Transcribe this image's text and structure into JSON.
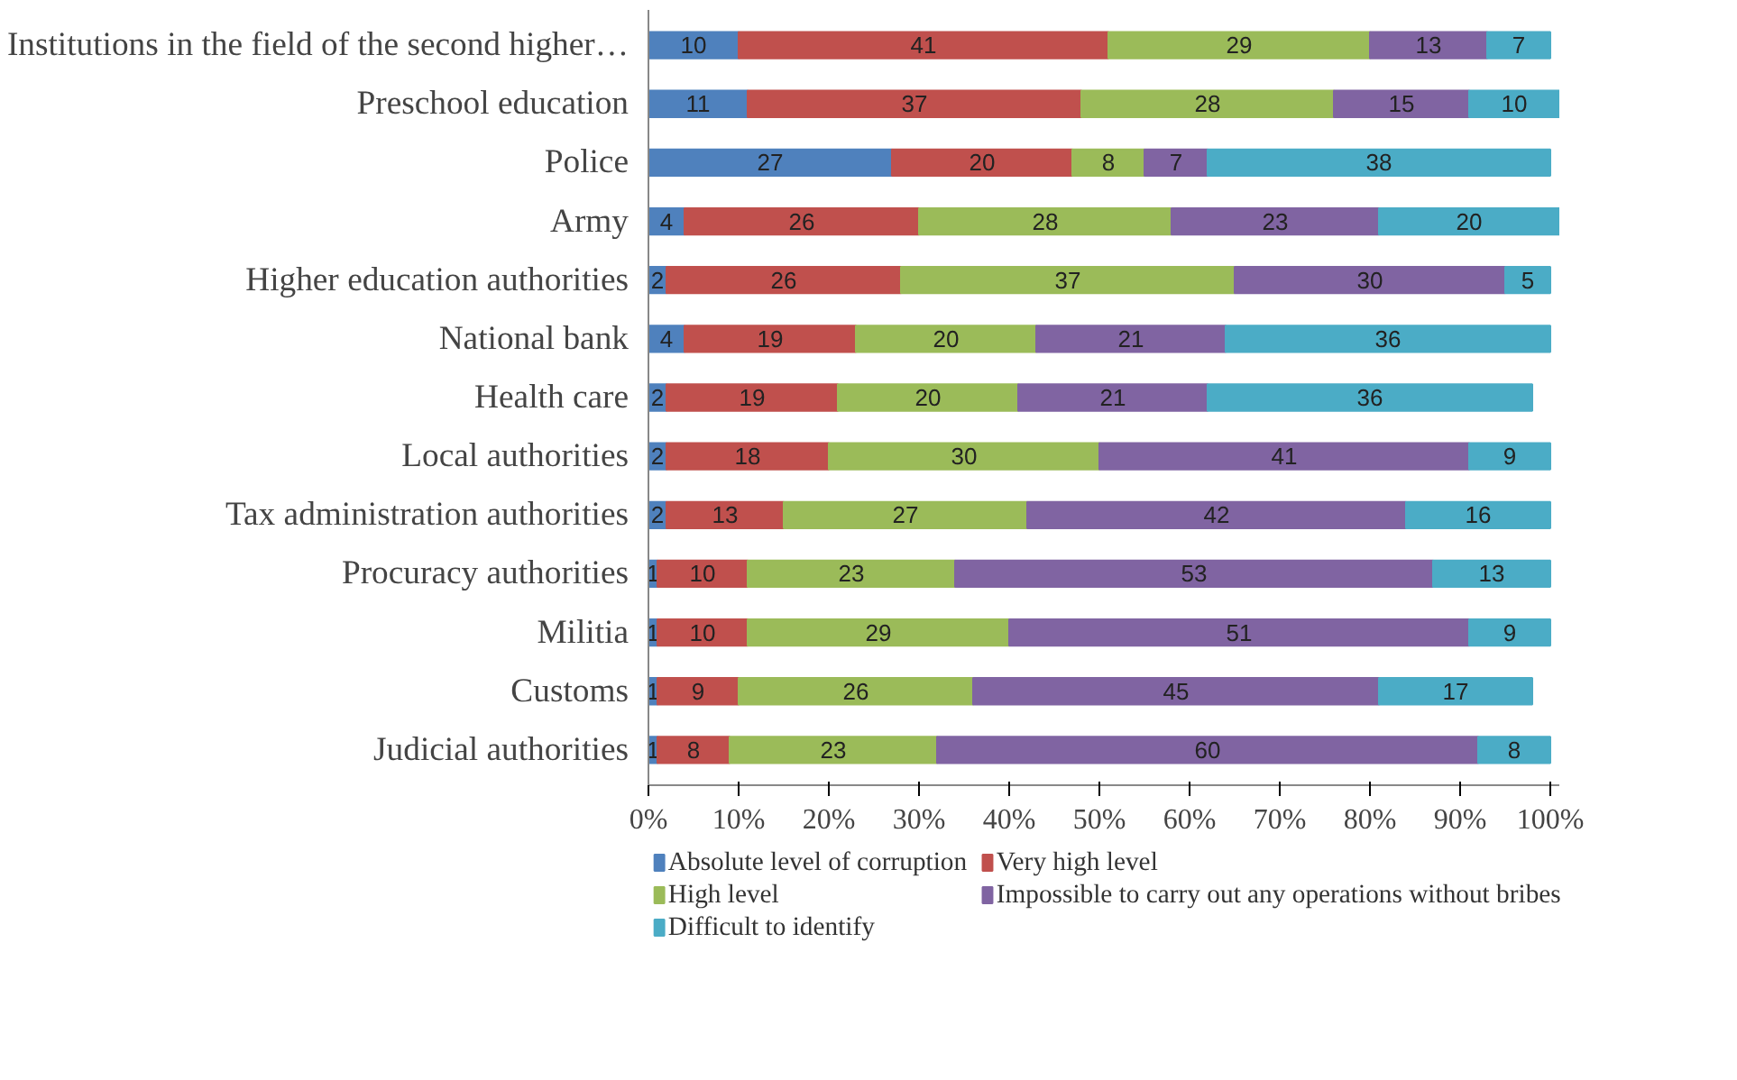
{
  "chart_data": {
    "type": "bar",
    "orientation": "horizontal",
    "stacked": true,
    "data_labels": true,
    "legend": "bottom",
    "categories": [
      "Institutions in the field of the second higher…",
      "Preschool education",
      "Police",
      "Army",
      "Higher education authorities",
      "National bank",
      "Health care",
      "Local authorities",
      "Tax administration authorities",
      "Procuracy authorities",
      "Militia",
      "Customs",
      "Judicial authorities"
    ],
    "xlim": [
      0,
      101
    ],
    "xticks": [
      {
        "value": 0,
        "label": "0%"
      },
      {
        "value": 10,
        "label": "10%"
      },
      {
        "value": 20,
        "label": "20%"
      },
      {
        "value": 30,
        "label": "30%"
      },
      {
        "value": 40,
        "label": "40%"
      },
      {
        "value": 50,
        "label": "50%"
      },
      {
        "value": 60,
        "label": "60%"
      },
      {
        "value": 70,
        "label": "70%"
      },
      {
        "value": 80,
        "label": "80%"
      },
      {
        "value": 90,
        "label": "90%"
      },
      {
        "value": 100,
        "label": "100%"
      }
    ],
    "series": [
      {
        "name": "Absolute level of corruption",
        "color": "#4f81bd",
        "values": [
          10,
          11,
          27,
          4,
          2,
          4,
          2,
          2,
          2,
          1,
          1,
          1,
          1
        ]
      },
      {
        "name": "Very high level",
        "color": "#c0504d",
        "values": [
          41,
          37,
          20,
          26,
          26,
          19,
          19,
          18,
          13,
          10,
          10,
          9,
          8
        ]
      },
      {
        "name": "High level",
        "color": "#9bbb59",
        "values": [
          29,
          28,
          8,
          28,
          37,
          20,
          20,
          30,
          27,
          23,
          29,
          26,
          23
        ]
      },
      {
        "name": "Impossible to carry out any operations without bribes",
        "color": "#8064a2",
        "values": [
          13,
          15,
          7,
          23,
          30,
          21,
          21,
          41,
          42,
          53,
          51,
          45,
          60
        ]
      },
      {
        "name": "Difficult to identify",
        "color": "#4bacc6",
        "values": [
          7,
          10,
          38,
          20,
          5,
          36,
          36,
          9,
          16,
          13,
          9,
          17,
          8
        ]
      }
    ]
  }
}
